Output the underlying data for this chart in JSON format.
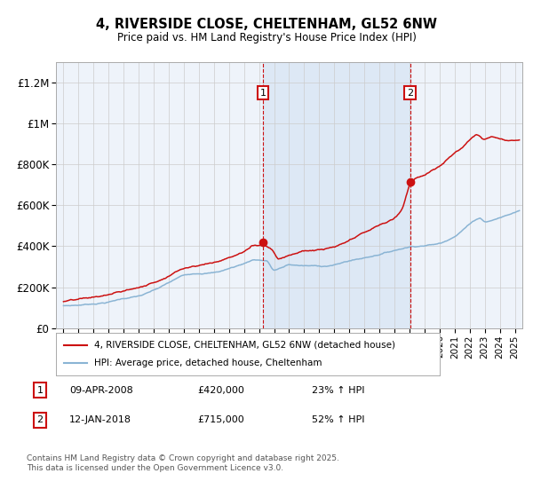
{
  "title": "4, RIVERSIDE CLOSE, CHELTENHAM, GL52 6NW",
  "subtitle": "Price paid vs. HM Land Registry's House Price Index (HPI)",
  "xlim": [
    1994.5,
    2025.5
  ],
  "ylim": [
    0,
    1300000
  ],
  "yticks": [
    0,
    200000,
    400000,
    600000,
    800000,
    1000000,
    1200000
  ],
  "ytick_labels": [
    "£0",
    "£200K",
    "£400K",
    "£600K",
    "£800K",
    "£1M",
    "£1.2M"
  ],
  "xticks": [
    1995,
    1996,
    1997,
    1998,
    1999,
    2000,
    2001,
    2002,
    2003,
    2004,
    2005,
    2006,
    2007,
    2008,
    2009,
    2010,
    2011,
    2012,
    2013,
    2014,
    2015,
    2016,
    2017,
    2018,
    2019,
    2020,
    2021,
    2022,
    2023,
    2024,
    2025
  ],
  "sale1_x": 2008.27,
  "sale1_y": 420000,
  "sale2_x": 2018.04,
  "sale2_y": 715000,
  "hpi_color": "#8ab4d4",
  "price_color": "#cc1111",
  "shaded_color": "#dde8f5",
  "grid_color": "#cccccc",
  "bg_color": "#eef3fa",
  "legend_label_price": "4, RIVERSIDE CLOSE, CHELTENHAM, GL52 6NW (detached house)",
  "legend_label_hpi": "HPI: Average price, detached house, Cheltenham",
  "footer": "Contains HM Land Registry data © Crown copyright and database right 2025.\nThis data is licensed under the Open Government Licence v3.0."
}
